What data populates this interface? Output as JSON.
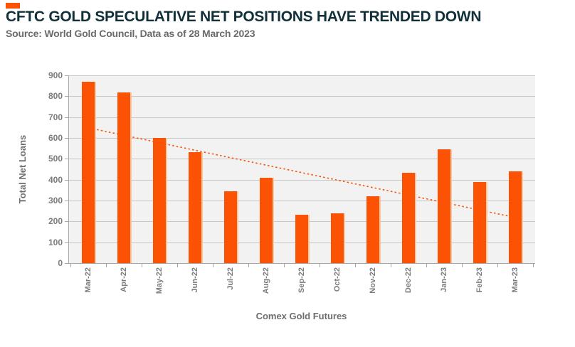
{
  "header": {
    "title": "CFTC GOLD SPECULATIVE NET POSITIONS HAVE TRENDED DOWN",
    "source": "Source: World Gold Council, Data as of 28 March 2023"
  },
  "colors": {
    "accent_orange": "#FC5204",
    "title_teal": "#11303A",
    "source_gray": "#6A6A6D",
    "axis_text_gray": "#7C7C7C",
    "plot_background": "#F2F2F2",
    "gridline_gray": "#C8C8C8"
  },
  "chart_data": {
    "type": "bar",
    "title": "CFTC GOLD SPECULATIVE NET POSITIONS HAVE TRENDED DOWN",
    "subtitle": "Source: World Gold Council, Data as of 28 March 2023",
    "categories": [
      "Mar-22",
      "Apr-22",
      "May-22",
      "Jun-22",
      "Jul-22",
      "Aug-22",
      "Sep-22",
      "Oct-22",
      "Nov-22",
      "Dec-22",
      "Jan-23",
      "Feb-23",
      "Mar-23"
    ],
    "values": [
      868,
      818,
      600,
      533,
      345,
      410,
      233,
      238,
      322,
      432,
      545,
      390,
      440
    ],
    "xlabel": "Comex Gold Futures",
    "ylabel": "Total Net Loans",
    "ylim": [
      0,
      900
    ],
    "ytick_step": 100,
    "grid": "horizontal",
    "legend": "none",
    "bar_color": "#FC5204",
    "trendline": {
      "style": "dotted",
      "color": "#FC5204",
      "start_category": "Mar-22",
      "start_value": 648,
      "end_category": "Mar-23",
      "end_value": 218
    }
  }
}
